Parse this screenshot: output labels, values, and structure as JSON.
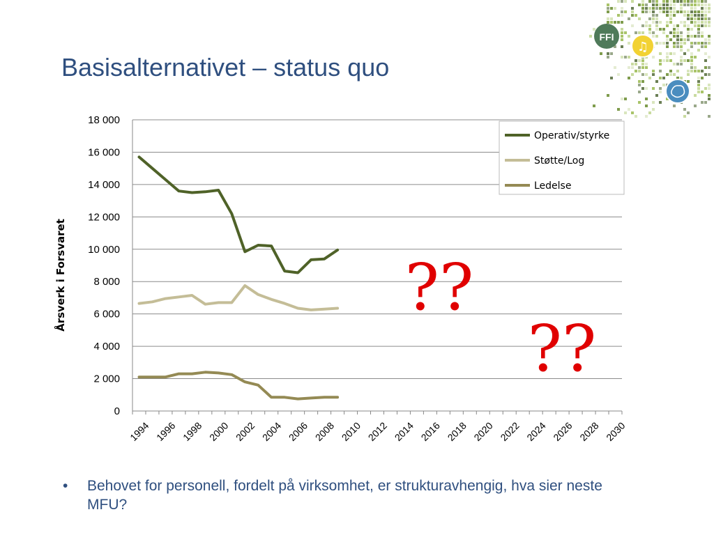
{
  "slide": {
    "title": "Basisalternativet – status quo",
    "bullet_marker": "•",
    "bullet_text": "Behovet for personell, fordelt på virksomhet, er strukturavhengig, hva sier neste MFU?",
    "logo_text": "FFI",
    "question_marks": [
      "??",
      "??"
    ]
  },
  "colors": {
    "title": "#2f4f7f",
    "operativ": "#4f6228",
    "stotte": "#c4bd97",
    "ledelse": "#948a54",
    "question": "#e00000",
    "logo_green": "#4f7a5a"
  },
  "chart_data": {
    "type": "line",
    "title": "",
    "xlabel": "",
    "ylabel": "Årsverk i Forsvaret",
    "xlim": [
      1994,
      2030
    ],
    "ylim": [
      0,
      18000
    ],
    "x_ticks": [
      "1994",
      "1996",
      "1998",
      "2000",
      "2002",
      "2004",
      "2006",
      "2008",
      "2010",
      "2012",
      "2014",
      "2016",
      "2018",
      "2020",
      "2022",
      "2024",
      "2026",
      "2028",
      "2030"
    ],
    "y_ticks": [
      "0",
      "2 000",
      "4 000",
      "6 000",
      "8 000",
      "10 000",
      "12 000",
      "14 000",
      "16 000",
      "18 000"
    ],
    "y_tick_values": [
      0,
      2000,
      4000,
      6000,
      8000,
      10000,
      12000,
      14000,
      16000,
      18000
    ],
    "grid": true,
    "legend_position": "top-right",
    "x": [
      1994,
      1995,
      1996,
      1997,
      1998,
      1999,
      2000,
      2001,
      2002,
      2003,
      2004,
      2005,
      2006,
      2007,
      2008,
      2009
    ],
    "series": [
      {
        "name": "Operativ/styrke",
        "values": [
          15700,
          15000,
          14300,
          13600,
          13500,
          13550,
          13650,
          12200,
          9850,
          10250,
          10200,
          8650,
          8550,
          9350,
          9400,
          9950
        ]
      },
      {
        "name": "Støtte/Log",
        "values": [
          6650,
          6750,
          6950,
          7050,
          7150,
          6600,
          6700,
          6700,
          7750,
          7200,
          6900,
          6650,
          6350,
          6250,
          6300,
          6350
        ]
      },
      {
        "name": "Ledelse",
        "values": [
          2100,
          2100,
          2100,
          2300,
          2300,
          2400,
          2350,
          2250,
          1800,
          1600,
          850,
          850,
          750,
          800,
          850,
          850
        ]
      }
    ]
  }
}
